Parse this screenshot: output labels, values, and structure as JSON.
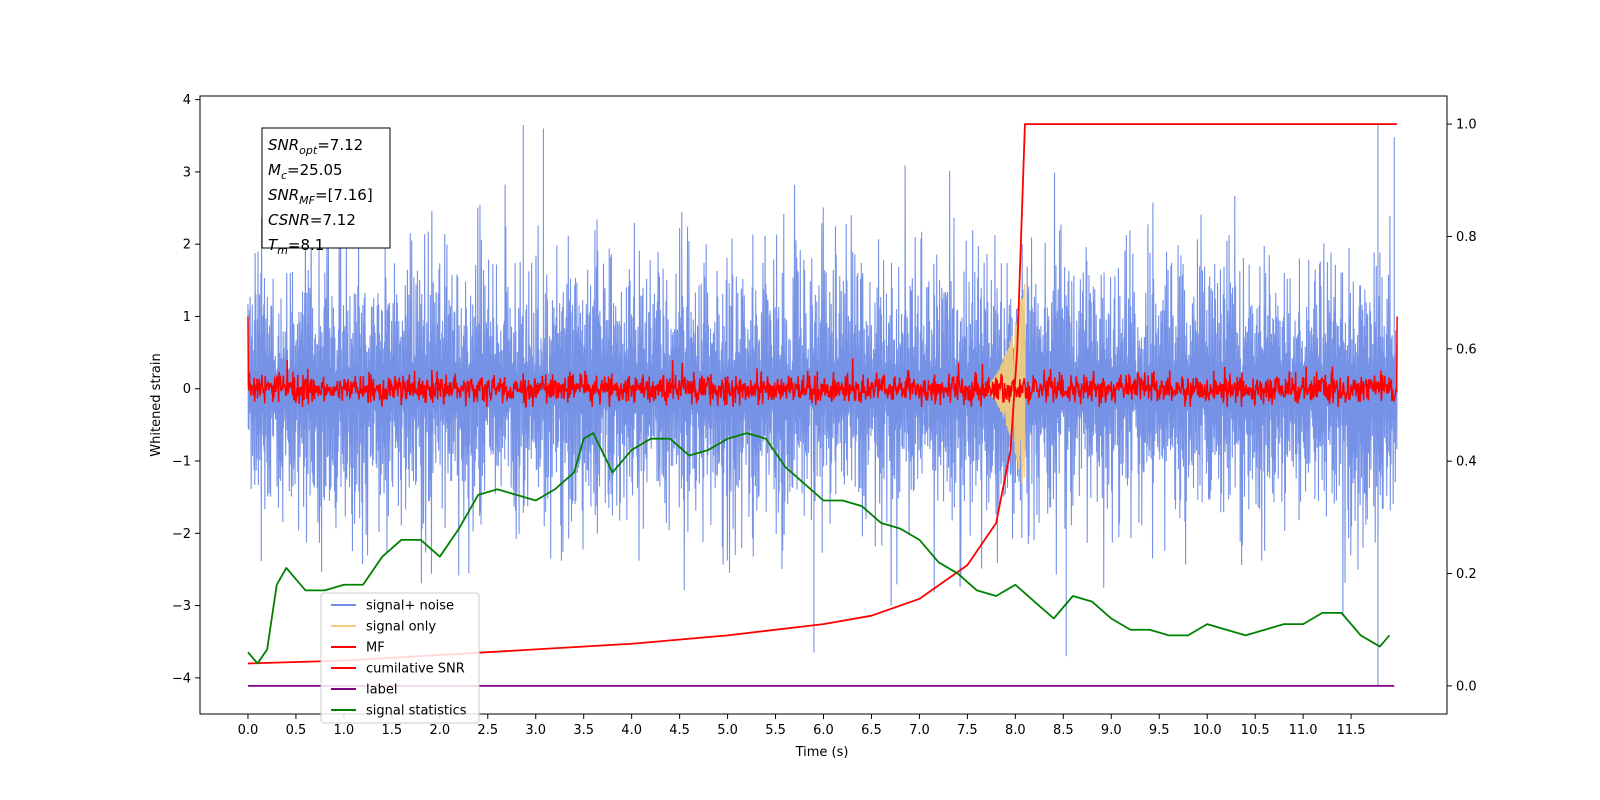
{
  "chart_data": {
    "type": "line",
    "xlabel": "Time (s)",
    "ylabel": "Whitened strain",
    "xlim": [
      -0.5,
      12.5
    ],
    "ylim": [
      -4.5,
      4.05
    ],
    "y2lim": [
      -0.05,
      1.05
    ],
    "x_ticks": [
      0.0,
      0.5,
      1.0,
      1.5,
      2.0,
      2.5,
      3.0,
      3.5,
      4.0,
      4.5,
      5.0,
      5.5,
      6.0,
      6.5,
      7.0,
      7.5,
      8.0,
      8.5,
      9.0,
      9.5,
      10.0,
      10.5,
      11.0,
      11.5
    ],
    "x_tick_labels": [
      "0.0",
      "0.5",
      "1.0",
      "1.5",
      "2.0",
      "2.5",
      "3.0",
      "3.5",
      "4.0",
      "4.5",
      "5.0",
      "5.5",
      "6.0",
      "6.5",
      "7.0",
      "7.5",
      "8.0",
      "8.5",
      "9.0",
      "9.5",
      "10.0",
      "10.5",
      "11.0",
      "11.5"
    ],
    "y_ticks": [
      -4,
      -3,
      -2,
      -1,
      0,
      1,
      2,
      3,
      4
    ],
    "y_tick_labels": [
      "−4",
      "−3",
      "−2",
      "−1",
      "0",
      "1",
      "2",
      "3",
      "4"
    ],
    "y2_ticks": [
      0.0,
      0.2,
      0.4,
      0.6,
      0.8,
      1.0
    ],
    "y2_tick_labels": [
      "0.0",
      "0.2",
      "0.4",
      "0.6",
      "0.8",
      "1.0"
    ],
    "grid": false,
    "legend_placement": "lower-left",
    "legend": [
      {
        "label": "signal+ noise",
        "color": "#6f8ce6"
      },
      {
        "label": "signal only",
        "color": "#f6cd7a"
      },
      {
        "label": "MF",
        "color": "#ff0000"
      },
      {
        "label": "cumilative SNR",
        "color": "#ff0000"
      },
      {
        "label": "label",
        "color": "#800080"
      },
      {
        "label": "signal statistics",
        "color": "#008000"
      }
    ],
    "stats_box": [
      {
        "sym": "SNR",
        "sub": "opt",
        "val": "=7.12"
      },
      {
        "sym": "M",
        "sub": "c",
        "val": "=25.05"
      },
      {
        "sym": "SNR",
        "sub": "MF",
        "val": "=[7.16]"
      },
      {
        "sym": "CSNR",
        "sub": "",
        "val": "=7.12"
      },
      {
        "sym": "T",
        "sub": "m",
        "val": "=8.1"
      }
    ],
    "series": {
      "signal_noise": {
        "axis": "left",
        "color": "#6f8ce6",
        "t_start": 0.0,
        "t_end": 11.98,
        "noise_std": 1.0,
        "peaks_up": [
          [
            2.87,
            3.65
          ],
          [
            3.08,
            3.6
          ],
          [
            11.78,
            3.65
          ],
          [
            11.95,
            3.48
          ]
        ],
        "peaks_down": [
          [
            5.9,
            -3.65
          ],
          [
            8.53,
            -3.7
          ],
          [
            11.78,
            -4.12
          ]
        ]
      },
      "signal_only": {
        "axis": "left",
        "color": "#f6cd7a",
        "t_start": 7.6,
        "t_end": 8.1,
        "peak_amplitude": 1.5
      },
      "mf": {
        "axis": "left",
        "color": "#ff0000",
        "t_start": 0.0,
        "t_end": 11.98,
        "baseline": 0.0,
        "noise_std": 0.1,
        "start_value": 1.0,
        "end_value": 1.0
      },
      "cumulative_snr": {
        "axis": "right",
        "color": "#ff0000",
        "merger_time": 8.1,
        "points": [
          [
            0.0,
            0.04
          ],
          [
            1.0,
            0.045
          ],
          [
            2.0,
            0.055
          ],
          [
            3.0,
            0.065
          ],
          [
            4.0,
            0.075
          ],
          [
            5.0,
            0.09
          ],
          [
            6.0,
            0.11
          ],
          [
            6.5,
            0.125
          ],
          [
            7.0,
            0.155
          ],
          [
            7.5,
            0.215
          ],
          [
            7.8,
            0.29
          ],
          [
            7.95,
            0.42
          ],
          [
            8.02,
            0.6
          ],
          [
            8.07,
            0.85
          ],
          [
            8.1,
            1.0
          ],
          [
            11.98,
            1.0
          ]
        ]
      },
      "label": {
        "axis": "right",
        "color": "#800080",
        "points": [
          [
            0.0,
            0.0
          ],
          [
            11.95,
            0.0
          ]
        ]
      },
      "signal_statistics": {
        "axis": "right",
        "color": "#008000",
        "points": [
          [
            0.0,
            0.06
          ],
          [
            0.1,
            0.04
          ],
          [
            0.2,
            0.065
          ],
          [
            0.3,
            0.18
          ],
          [
            0.4,
            0.21
          ],
          [
            0.5,
            0.19
          ],
          [
            0.6,
            0.17
          ],
          [
            0.8,
            0.17
          ],
          [
            1.0,
            0.18
          ],
          [
            1.2,
            0.18
          ],
          [
            1.4,
            0.23
          ],
          [
            1.6,
            0.26
          ],
          [
            1.8,
            0.26
          ],
          [
            2.0,
            0.23
          ],
          [
            2.2,
            0.28
          ],
          [
            2.4,
            0.34
          ],
          [
            2.6,
            0.35
          ],
          [
            2.8,
            0.34
          ],
          [
            3.0,
            0.33
          ],
          [
            3.2,
            0.35
          ],
          [
            3.4,
            0.38
          ],
          [
            3.5,
            0.44
          ],
          [
            3.6,
            0.45
          ],
          [
            3.8,
            0.38
          ],
          [
            4.0,
            0.42
          ],
          [
            4.2,
            0.44
          ],
          [
            4.4,
            0.44
          ],
          [
            4.6,
            0.41
          ],
          [
            4.8,
            0.42
          ],
          [
            5.0,
            0.44
          ],
          [
            5.2,
            0.45
          ],
          [
            5.4,
            0.44
          ],
          [
            5.6,
            0.39
          ],
          [
            5.8,
            0.36
          ],
          [
            6.0,
            0.33
          ],
          [
            6.2,
            0.33
          ],
          [
            6.4,
            0.32
          ],
          [
            6.6,
            0.29
          ],
          [
            6.8,
            0.28
          ],
          [
            7.0,
            0.26
          ],
          [
            7.2,
            0.22
          ],
          [
            7.4,
            0.2
          ],
          [
            7.6,
            0.17
          ],
          [
            7.8,
            0.16
          ],
          [
            8.0,
            0.18
          ],
          [
            8.2,
            0.15
          ],
          [
            8.4,
            0.12
          ],
          [
            8.6,
            0.16
          ],
          [
            8.8,
            0.15
          ],
          [
            9.0,
            0.12
          ],
          [
            9.2,
            0.1
          ],
          [
            9.4,
            0.1
          ],
          [
            9.6,
            0.09
          ],
          [
            9.8,
            0.09
          ],
          [
            10.0,
            0.11
          ],
          [
            10.2,
            0.1
          ],
          [
            10.4,
            0.09
          ],
          [
            10.6,
            0.1
          ],
          [
            10.8,
            0.11
          ],
          [
            11.0,
            0.11
          ],
          [
            11.2,
            0.13
          ],
          [
            11.4,
            0.13
          ],
          [
            11.6,
            0.09
          ],
          [
            11.8,
            0.07
          ],
          [
            11.9,
            0.09
          ]
        ]
      }
    }
  }
}
